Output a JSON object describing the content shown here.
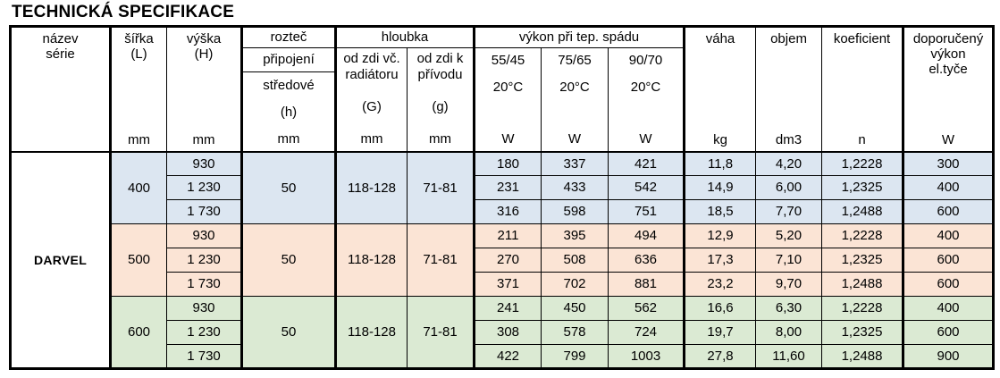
{
  "title": "TECHNICKÁ SPECIFIKACE",
  "colors": {
    "border": "#000000",
    "group_400_bg": "#DCE6F1",
    "group_500_bg": "#FBE4D5",
    "group_600_bg": "#DBEAD3"
  },
  "header": {
    "nazev_line1": "název",
    "nazev_line2": "série",
    "sirka_label": "šířka",
    "sirka_sub": "(L)",
    "vyska_label": "výška",
    "vyska_sub": "(H)",
    "roztec_label": "rozteč",
    "roztec_row2": "připojení",
    "roztec_row3a": "středové",
    "roztec_row3b": "(h)",
    "hloubka_label": "hloubka",
    "hloubka_g1_line1": "od zdi  vč.",
    "hloubka_g1_line2": "radiátoru",
    "hloubka_g1_sym": "(G)",
    "hloubka_g2_line1": "od zdi  k",
    "hloubka_g2_line2": "přívodu",
    "hloubka_g2_sym": "(g)",
    "vykon_label": "výkon při tep.  spádu",
    "vykon_cols": [
      "55/45",
      "75/65",
      "90/70"
    ],
    "vykon_temp": "20°C",
    "vaha_label": "váha",
    "objem_label": "objem",
    "koeficient_label": "koeficient",
    "doporuceny_line1": "doporučený",
    "doporuceny_line2": "výkon",
    "doporuceny_line3": "el.tyče",
    "units": {
      "mm": "mm",
      "w": "W",
      "kg": "kg",
      "dm3": "dm3",
      "n": "n"
    }
  },
  "body": {
    "series_name": "DARVEL",
    "groups": [
      {
        "width": "400",
        "roztec": "50",
        "hloubka_g": "118-128",
        "hloubka_g_small": "71-81",
        "color": "#DCE6F1",
        "rows": [
          {
            "height": "930",
            "p55": "180",
            "p75": "337",
            "p90": "421",
            "vaha": "11,8",
            "objem": "4,20",
            "koef": "1,2228",
            "dop": "300"
          },
          {
            "height": "1 230",
            "p55": "231",
            "p75": "433",
            "p90": "542",
            "vaha": "14,9",
            "objem": "6,00",
            "koef": "1,2325",
            "dop": "400"
          },
          {
            "height": "1 730",
            "p55": "316",
            "p75": "598",
            "p90": "751",
            "vaha": "18,5",
            "objem": "7,70",
            "koef": "1,2488",
            "dop": "600"
          }
        ]
      },
      {
        "width": "500",
        "roztec": "50",
        "hloubka_g": "118-128",
        "hloubka_g_small": "71-81",
        "color": "#FBE4D5",
        "rows": [
          {
            "height": "930",
            "p55": "211",
            "p75": "395",
            "p90": "494",
            "vaha": "12,9",
            "objem": "5,20",
            "koef": "1,2228",
            "dop": "400"
          },
          {
            "height": "1 230",
            "p55": "270",
            "p75": "508",
            "p90": "636",
            "vaha": "17,3",
            "objem": "7,10",
            "koef": "1,2325",
            "dop": "600"
          },
          {
            "height": "1 730",
            "p55": "371",
            "p75": "702",
            "p90": "881",
            "vaha": "23,2",
            "objem": "9,70",
            "koef": "1,2488",
            "dop": "600"
          }
        ]
      },
      {
        "width": "600",
        "roztec": "50",
        "hloubka_g": "118-128",
        "hloubka_g_small": "71-81",
        "color": "#DBEAD3",
        "rows": [
          {
            "height": "930",
            "p55": "241",
            "p75": "450",
            "p90": "562",
            "vaha": "16,6",
            "objem": "6,30",
            "koef": "1,2228",
            "dop": "400"
          },
          {
            "height": "1 230",
            "p55": "308",
            "p75": "578",
            "p90": "724",
            "vaha": "19,7",
            "objem": "8,00",
            "koef": "1,2325",
            "dop": "600"
          },
          {
            "height": "1 730",
            "p55": "422",
            "p75": "799",
            "p90": "1003",
            "vaha": "27,8",
            "objem": "11,60",
            "koef": "1,2488",
            "dop": "900"
          }
        ]
      }
    ]
  }
}
